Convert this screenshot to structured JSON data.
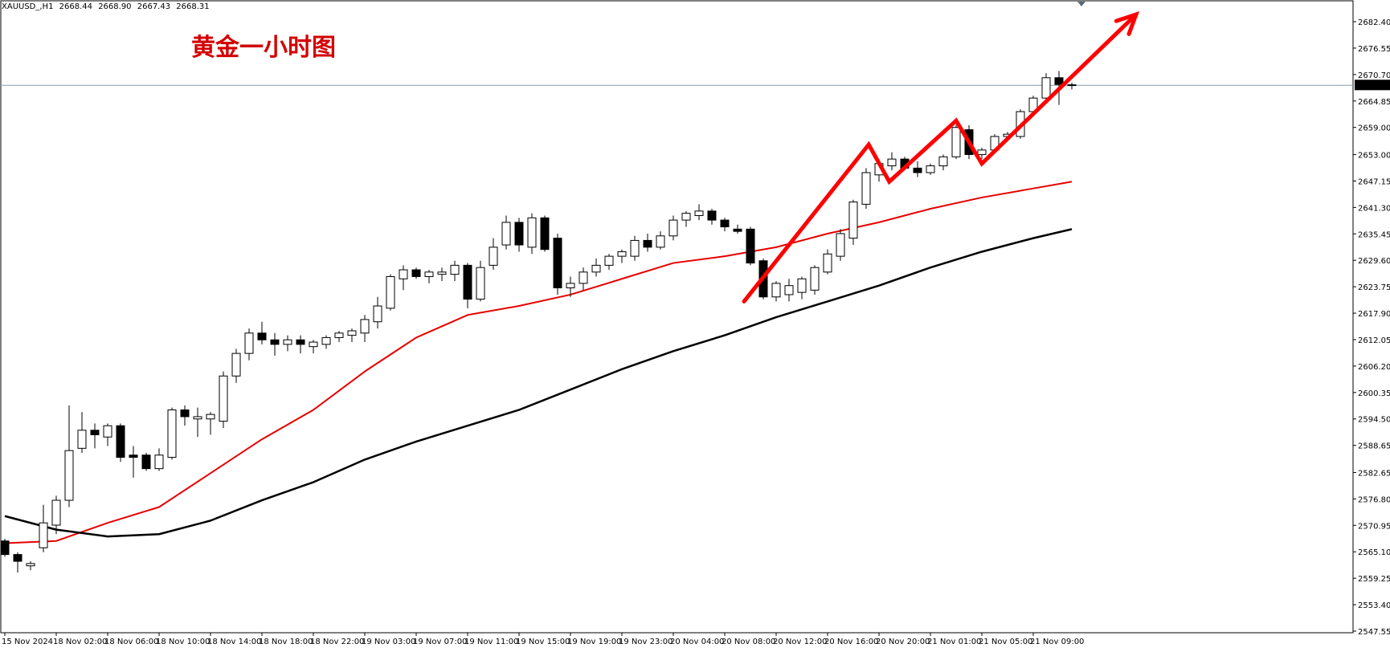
{
  "header": {
    "symbol": "XAUUSD_,H1",
    "open": "2668.44",
    "high": "2668.90",
    "low": "2667.43",
    "close": "2668.31"
  },
  "annotation_title": "黄金一小时图",
  "colors": {
    "background": "#ffffff",
    "grid_frame": "#000000",
    "ma_fast": "#e60000",
    "ma_slow": "#000000",
    "annotation_arrow": "#ff0000",
    "current_price_line": "#8a9aa8",
    "bull_body": "#ffffff",
    "bear_body": "#000000"
  },
  "chart_data": {
    "type": "candlestick",
    "instrument": "XAUUSD_",
    "timeframe": "H1",
    "ylim": [
      2547.55,
      2686.5
    ],
    "current_price": "2668.31",
    "y_ticks": [
      "2682.40",
      "2676.55",
      "2670.70",
      "2664.85",
      "2659.00",
      "2653.00",
      "2647.15",
      "2641.30",
      "2635.45",
      "2629.60",
      "2623.75",
      "2617.90",
      "2612.05",
      "2606.20",
      "2600.35",
      "2594.50",
      "2588.65",
      "2582.65",
      "2576.80",
      "2570.95",
      "2565.10",
      "2559.25",
      "2553.40",
      "2547.55"
    ],
    "x_ticks": [
      {
        "index": 0,
        "label": "15 Nov 2024"
      },
      {
        "index": 4,
        "label": "18 Nov 02:00"
      },
      {
        "index": 8,
        "label": "18 Nov 06:00"
      },
      {
        "index": 12,
        "label": "18 Nov 10:00"
      },
      {
        "index": 16,
        "label": "18 Nov 14:00"
      },
      {
        "index": 20,
        "label": "18 Nov 18:00"
      },
      {
        "index": 24,
        "label": "18 Nov 22:00"
      },
      {
        "index": 28,
        "label": "19 Nov 03:00"
      },
      {
        "index": 32,
        "label": "19 Nov 07:00"
      },
      {
        "index": 36,
        "label": "19 Nov 11:00"
      },
      {
        "index": 40,
        "label": "19 Nov 15:00"
      },
      {
        "index": 44,
        "label": "19 Nov 19:00"
      },
      {
        "index": 48,
        "label": "19 Nov 23:00"
      },
      {
        "index": 52,
        "label": "20 Nov 04:00"
      },
      {
        "index": 56,
        "label": "20 Nov 08:00"
      },
      {
        "index": 60,
        "label": "20 Nov 12:00"
      },
      {
        "index": 64,
        "label": "20 Nov 16:00"
      },
      {
        "index": 68,
        "label": "20 Nov 20:00"
      },
      {
        "index": 72,
        "label": "21 Nov 01:00"
      },
      {
        "index": 76,
        "label": "21 Nov 05:00"
      },
      {
        "index": 80,
        "label": "21 Nov 09:00"
      }
    ],
    "candles": [
      {
        "o": 2567.5,
        "h": 2568.0,
        "l": 2564.0,
        "c": 2564.5
      },
      {
        "o": 2564.5,
        "h": 2565.0,
        "l": 2560.5,
        "c": 2563.0
      },
      {
        "o": 2562.0,
        "h": 2563.0,
        "l": 2561.0,
        "c": 2562.5
      },
      {
        "o": 2566.0,
        "h": 2575.5,
        "l": 2565.0,
        "c": 2571.5
      },
      {
        "o": 2571.0,
        "h": 2577.5,
        "l": 2569.0,
        "c": 2576.5
      },
      {
        "o": 2576.5,
        "h": 2597.5,
        "l": 2575.0,
        "c": 2587.5
      },
      {
        "o": 2588.0,
        "h": 2596.0,
        "l": 2587.0,
        "c": 2592.0
      },
      {
        "o": 2592.0,
        "h": 2593.5,
        "l": 2588.0,
        "c": 2591.0
      },
      {
        "o": 2590.5,
        "h": 2593.5,
        "l": 2588.5,
        "c": 2593.0
      },
      {
        "o": 2593.0,
        "h": 2593.5,
        "l": 2585.0,
        "c": 2586.0
      },
      {
        "o": 2586.5,
        "h": 2588.5,
        "l": 2581.5,
        "c": 2586.0
      },
      {
        "o": 2586.5,
        "h": 2587.0,
        "l": 2583.0,
        "c": 2583.5
      },
      {
        "o": 2583.5,
        "h": 2588.0,
        "l": 2583.0,
        "c": 2586.5
      },
      {
        "o": 2586.0,
        "h": 2597.0,
        "l": 2585.5,
        "c": 2596.5
      },
      {
        "o": 2596.5,
        "h": 2597.5,
        "l": 2593.0,
        "c": 2595.0
      },
      {
        "o": 2594.5,
        "h": 2597.0,
        "l": 2590.5,
        "c": 2595.0
      },
      {
        "o": 2594.5,
        "h": 2596.0,
        "l": 2591.0,
        "c": 2595.5
      },
      {
        "o": 2594.0,
        "h": 2605.0,
        "l": 2592.5,
        "c": 2604.0
      },
      {
        "o": 2604.0,
        "h": 2610.0,
        "l": 2602.5,
        "c": 2609.0
      },
      {
        "o": 2609.0,
        "h": 2614.5,
        "l": 2607.5,
        "c": 2613.5
      },
      {
        "o": 2613.5,
        "h": 2616.0,
        "l": 2611.0,
        "c": 2612.0
      },
      {
        "o": 2612.0,
        "h": 2613.5,
        "l": 2608.5,
        "c": 2611.0
      },
      {
        "o": 2611.0,
        "h": 2613.0,
        "l": 2609.5,
        "c": 2612.0
      },
      {
        "o": 2612.0,
        "h": 2613.0,
        "l": 2609.0,
        "c": 2611.0
      },
      {
        "o": 2610.5,
        "h": 2612.0,
        "l": 2609.0,
        "c": 2611.5
      },
      {
        "o": 2611.0,
        "h": 2613.0,
        "l": 2610.0,
        "c": 2612.5
      },
      {
        "o": 2612.5,
        "h": 2614.0,
        "l": 2611.5,
        "c": 2613.5
      },
      {
        "o": 2613.0,
        "h": 2614.5,
        "l": 2611.5,
        "c": 2614.0
      },
      {
        "o": 2613.5,
        "h": 2617.5,
        "l": 2611.5,
        "c": 2616.5
      },
      {
        "o": 2616.0,
        "h": 2621.5,
        "l": 2614.5,
        "c": 2619.5
      },
      {
        "o": 2619.0,
        "h": 2626.5,
        "l": 2618.5,
        "c": 2626.0
      },
      {
        "o": 2625.5,
        "h": 2628.5,
        "l": 2623.0,
        "c": 2627.5
      },
      {
        "o": 2627.5,
        "h": 2628.0,
        "l": 2625.5,
        "c": 2626.0
      },
      {
        "o": 2626.0,
        "h": 2627.5,
        "l": 2624.5,
        "c": 2627.0
      },
      {
        "o": 2626.5,
        "h": 2628.0,
        "l": 2625.0,
        "c": 2627.0
      },
      {
        "o": 2626.5,
        "h": 2629.5,
        "l": 2625.0,
        "c": 2628.5
      },
      {
        "o": 2628.5,
        "h": 2629.0,
        "l": 2619.0,
        "c": 2621.0
      },
      {
        "o": 2621.0,
        "h": 2629.5,
        "l": 2620.5,
        "c": 2628.0
      },
      {
        "o": 2628.5,
        "h": 2634.5,
        "l": 2627.5,
        "c": 2632.5
      },
      {
        "o": 2633.0,
        "h": 2639.5,
        "l": 2632.0,
        "c": 2638.0
      },
      {
        "o": 2638.0,
        "h": 2639.0,
        "l": 2631.5,
        "c": 2633.0
      },
      {
        "o": 2632.5,
        "h": 2640.0,
        "l": 2631.0,
        "c": 2639.0
      },
      {
        "o": 2639.0,
        "h": 2639.5,
        "l": 2631.5,
        "c": 2632.0
      },
      {
        "o": 2634.5,
        "h": 2635.5,
        "l": 2622.0,
        "c": 2623.5
      },
      {
        "o": 2623.5,
        "h": 2626.0,
        "l": 2621.5,
        "c": 2624.5
      },
      {
        "o": 2624.5,
        "h": 2628.0,
        "l": 2623.0,
        "c": 2627.0
      },
      {
        "o": 2627.0,
        "h": 2630.0,
        "l": 2626.0,
        "c": 2628.5
      },
      {
        "o": 2628.5,
        "h": 2631.0,
        "l": 2627.5,
        "c": 2630.5
      },
      {
        "o": 2630.5,
        "h": 2632.0,
        "l": 2629.0,
        "c": 2631.5
      },
      {
        "o": 2630.5,
        "h": 2635.0,
        "l": 2629.5,
        "c": 2634.0
      },
      {
        "o": 2634.0,
        "h": 2635.5,
        "l": 2631.5,
        "c": 2632.5
      },
      {
        "o": 2632.5,
        "h": 2636.0,
        "l": 2632.0,
        "c": 2635.0
      },
      {
        "o": 2635.0,
        "h": 2639.5,
        "l": 2634.0,
        "c": 2638.5
      },
      {
        "o": 2638.5,
        "h": 2640.5,
        "l": 2637.0,
        "c": 2640.0
      },
      {
        "o": 2639.5,
        "h": 2642.0,
        "l": 2638.5,
        "c": 2640.5
      },
      {
        "o": 2640.5,
        "h": 2641.0,
        "l": 2637.5,
        "c": 2638.5
      },
      {
        "o": 2638.5,
        "h": 2639.0,
        "l": 2636.0,
        "c": 2637.0
      },
      {
        "o": 2636.5,
        "h": 2637.5,
        "l": 2635.5,
        "c": 2636.0
      },
      {
        "o": 2636.5,
        "h": 2637.0,
        "l": 2628.5,
        "c": 2629.0
      },
      {
        "o": 2629.5,
        "h": 2630.0,
        "l": 2621.0,
        "c": 2621.5
      },
      {
        "o": 2621.5,
        "h": 2625.0,
        "l": 2620.5,
        "c": 2624.5
      },
      {
        "o": 2622.0,
        "h": 2625.5,
        "l": 2620.5,
        "c": 2624.0
      },
      {
        "o": 2622.5,
        "h": 2626.0,
        "l": 2621.0,
        "c": 2625.5
      },
      {
        "o": 2623.0,
        "h": 2628.5,
        "l": 2622.0,
        "c": 2628.0
      },
      {
        "o": 2627.0,
        "h": 2632.0,
        "l": 2626.5,
        "c": 2631.0
      },
      {
        "o": 2630.5,
        "h": 2636.5,
        "l": 2629.5,
        "c": 2635.5
      },
      {
        "o": 2634.5,
        "h": 2643.0,
        "l": 2633.0,
        "c": 2642.5
      },
      {
        "o": 2642.0,
        "h": 2650.0,
        "l": 2641.0,
        "c": 2649.0
      },
      {
        "o": 2648.5,
        "h": 2652.0,
        "l": 2647.0,
        "c": 2651.0
      },
      {
        "o": 2650.5,
        "h": 2653.5,
        "l": 2649.5,
        "c": 2652.0
      },
      {
        "o": 2652.0,
        "h": 2652.5,
        "l": 2649.5,
        "c": 2650.0
      },
      {
        "o": 2650.0,
        "h": 2651.5,
        "l": 2648.0,
        "c": 2649.0
      },
      {
        "o": 2649.0,
        "h": 2651.0,
        "l": 2648.5,
        "c": 2650.5
      },
      {
        "o": 2650.5,
        "h": 2653.0,
        "l": 2649.5,
        "c": 2652.5
      },
      {
        "o": 2652.5,
        "h": 2659.5,
        "l": 2652.0,
        "c": 2659.0
      },
      {
        "o": 2658.5,
        "h": 2659.5,
        "l": 2652.0,
        "c": 2653.0
      },
      {
        "o": 2653.0,
        "h": 2654.5,
        "l": 2652.0,
        "c": 2654.0
      },
      {
        "o": 2654.0,
        "h": 2657.5,
        "l": 2653.5,
        "c": 2657.0
      },
      {
        "o": 2657.0,
        "h": 2658.0,
        "l": 2656.0,
        "c": 2657.5
      },
      {
        "o": 2657.0,
        "h": 2663.0,
        "l": 2656.5,
        "c": 2662.5
      },
      {
        "o": 2662.5,
        "h": 2666.0,
        "l": 2662.0,
        "c": 2665.5
      },
      {
        "o": 2665.5,
        "h": 2671.0,
        "l": 2664.5,
        "c": 2670.0
      },
      {
        "o": 2670.0,
        "h": 2671.5,
        "l": 2664.0,
        "c": 2668.5
      },
      {
        "o": 2668.44,
        "h": 2668.9,
        "l": 2667.43,
        "c": 2668.31
      }
    ],
    "series": [
      {
        "color": "#e60000",
        "x": [
          0,
          4,
          8,
          12,
          16,
          20,
          24,
          28,
          32,
          36,
          40,
          44,
          48,
          52,
          56,
          60,
          64,
          68,
          72,
          76,
          80,
          83
        ],
        "values": [
          2567.0,
          2567.5,
          2571.5,
          2575.0,
          2582.5,
          2590.0,
          2596.5,
          2605.0,
          2612.5,
          2617.5,
          2619.5,
          2622.0,
          2625.5,
          2629.0,
          2630.5,
          2632.5,
          2635.5,
          2638.0,
          2641.0,
          2643.5,
          2645.5,
          2647.0
        ]
      },
      {
        "color": "#000000",
        "x": [
          0,
          4,
          8,
          12,
          16,
          20,
          24,
          28,
          32,
          36,
          40,
          44,
          48,
          52,
          56,
          60,
          64,
          68,
          72,
          76,
          80,
          83
        ],
        "values": [
          2573.0,
          2570.0,
          2568.5,
          2569.0,
          2572.0,
          2576.5,
          2580.5,
          2585.5,
          2589.5,
          2593.0,
          2596.5,
          2601.0,
          2605.5,
          2609.5,
          2613.0,
          2617.0,
          2620.5,
          2624.0,
          2628.0,
          2631.5,
          2634.5,
          2636.5
        ]
      }
    ],
    "annotations": [
      {
        "type": "polyline-arrow",
        "color": "#ff0000",
        "points": [
          [
            57.5,
            2620.5
          ],
          [
            67.2,
            2655.2
          ],
          [
            68.8,
            2647.0
          ],
          [
            74.0,
            2660.5
          ],
          [
            76.0,
            2651.0
          ],
          [
            88.0,
            2684.0
          ]
        ]
      }
    ]
  }
}
